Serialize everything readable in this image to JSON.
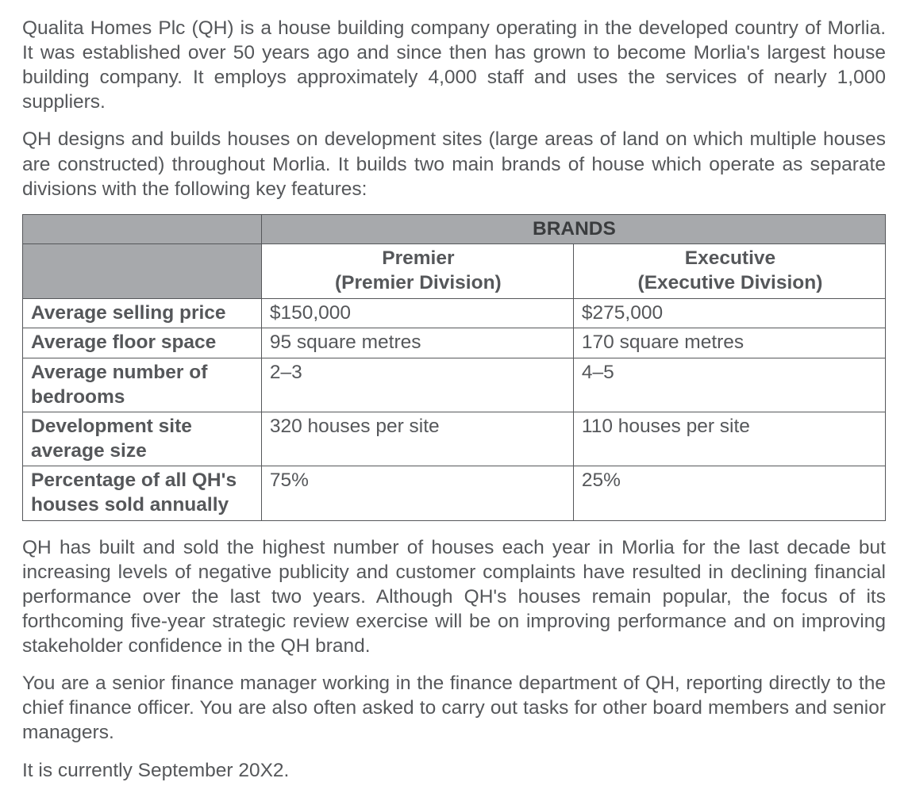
{
  "paragraphs": {
    "p1": "Qualita Homes Plc (QH) is a house building company operating in the developed country of Morlia. It was established over 50 years ago and since then has grown to become Morlia's largest house building company. It employs approximately 4,000 staff and uses the services of nearly 1,000 suppliers.",
    "p2": "QH designs and builds houses on development sites (large areas of land on which multiple houses are constructed) throughout Morlia. It builds two main brands of house which operate as separate divisions with the following key features:",
    "p3": "QH has built and sold the highest number of houses each year in Morlia for the last decade but increasing levels of negative publicity and customer complaints have resulted in declining financial performance over the last two years. Although QH's houses remain popular, the focus of its forthcoming five-year strategic review exercise will be on improving performance and on improving stakeholder confidence in the QH brand.",
    "p4": "You are a senior finance manager working in the finance department of QH, reporting directly to the chief finance officer. You are also often asked to carry out tasks for other board members and senior managers.",
    "p5": "It is currently September 20X2."
  },
  "table": {
    "header_span": "BRANDS",
    "col1": {
      "line1": "Premier",
      "line2": "(Premier Division)"
    },
    "col2": {
      "line1": "Executive",
      "line2": "(Executive Division)"
    },
    "rows": [
      {
        "label": "Average selling price",
        "premier": "$150,000",
        "executive": "$275,000"
      },
      {
        "label": "Average floor space",
        "premier": "95 square metres",
        "executive": "170 square metres"
      },
      {
        "label": "Average number of bedrooms",
        "premier": "2–3",
        "executive": "4–5"
      },
      {
        "label": "Development site average size",
        "premier": "320 houses per site",
        "executive": "110 houses per site"
      },
      {
        "label": "Percentage of all QH's houses sold annually",
        "premier": "75%",
        "executive": "25%"
      }
    ],
    "header_bg": "#a7a9ac",
    "border_color": "#55575a",
    "text_color": "#55575a",
    "font_size_pt": 18
  }
}
